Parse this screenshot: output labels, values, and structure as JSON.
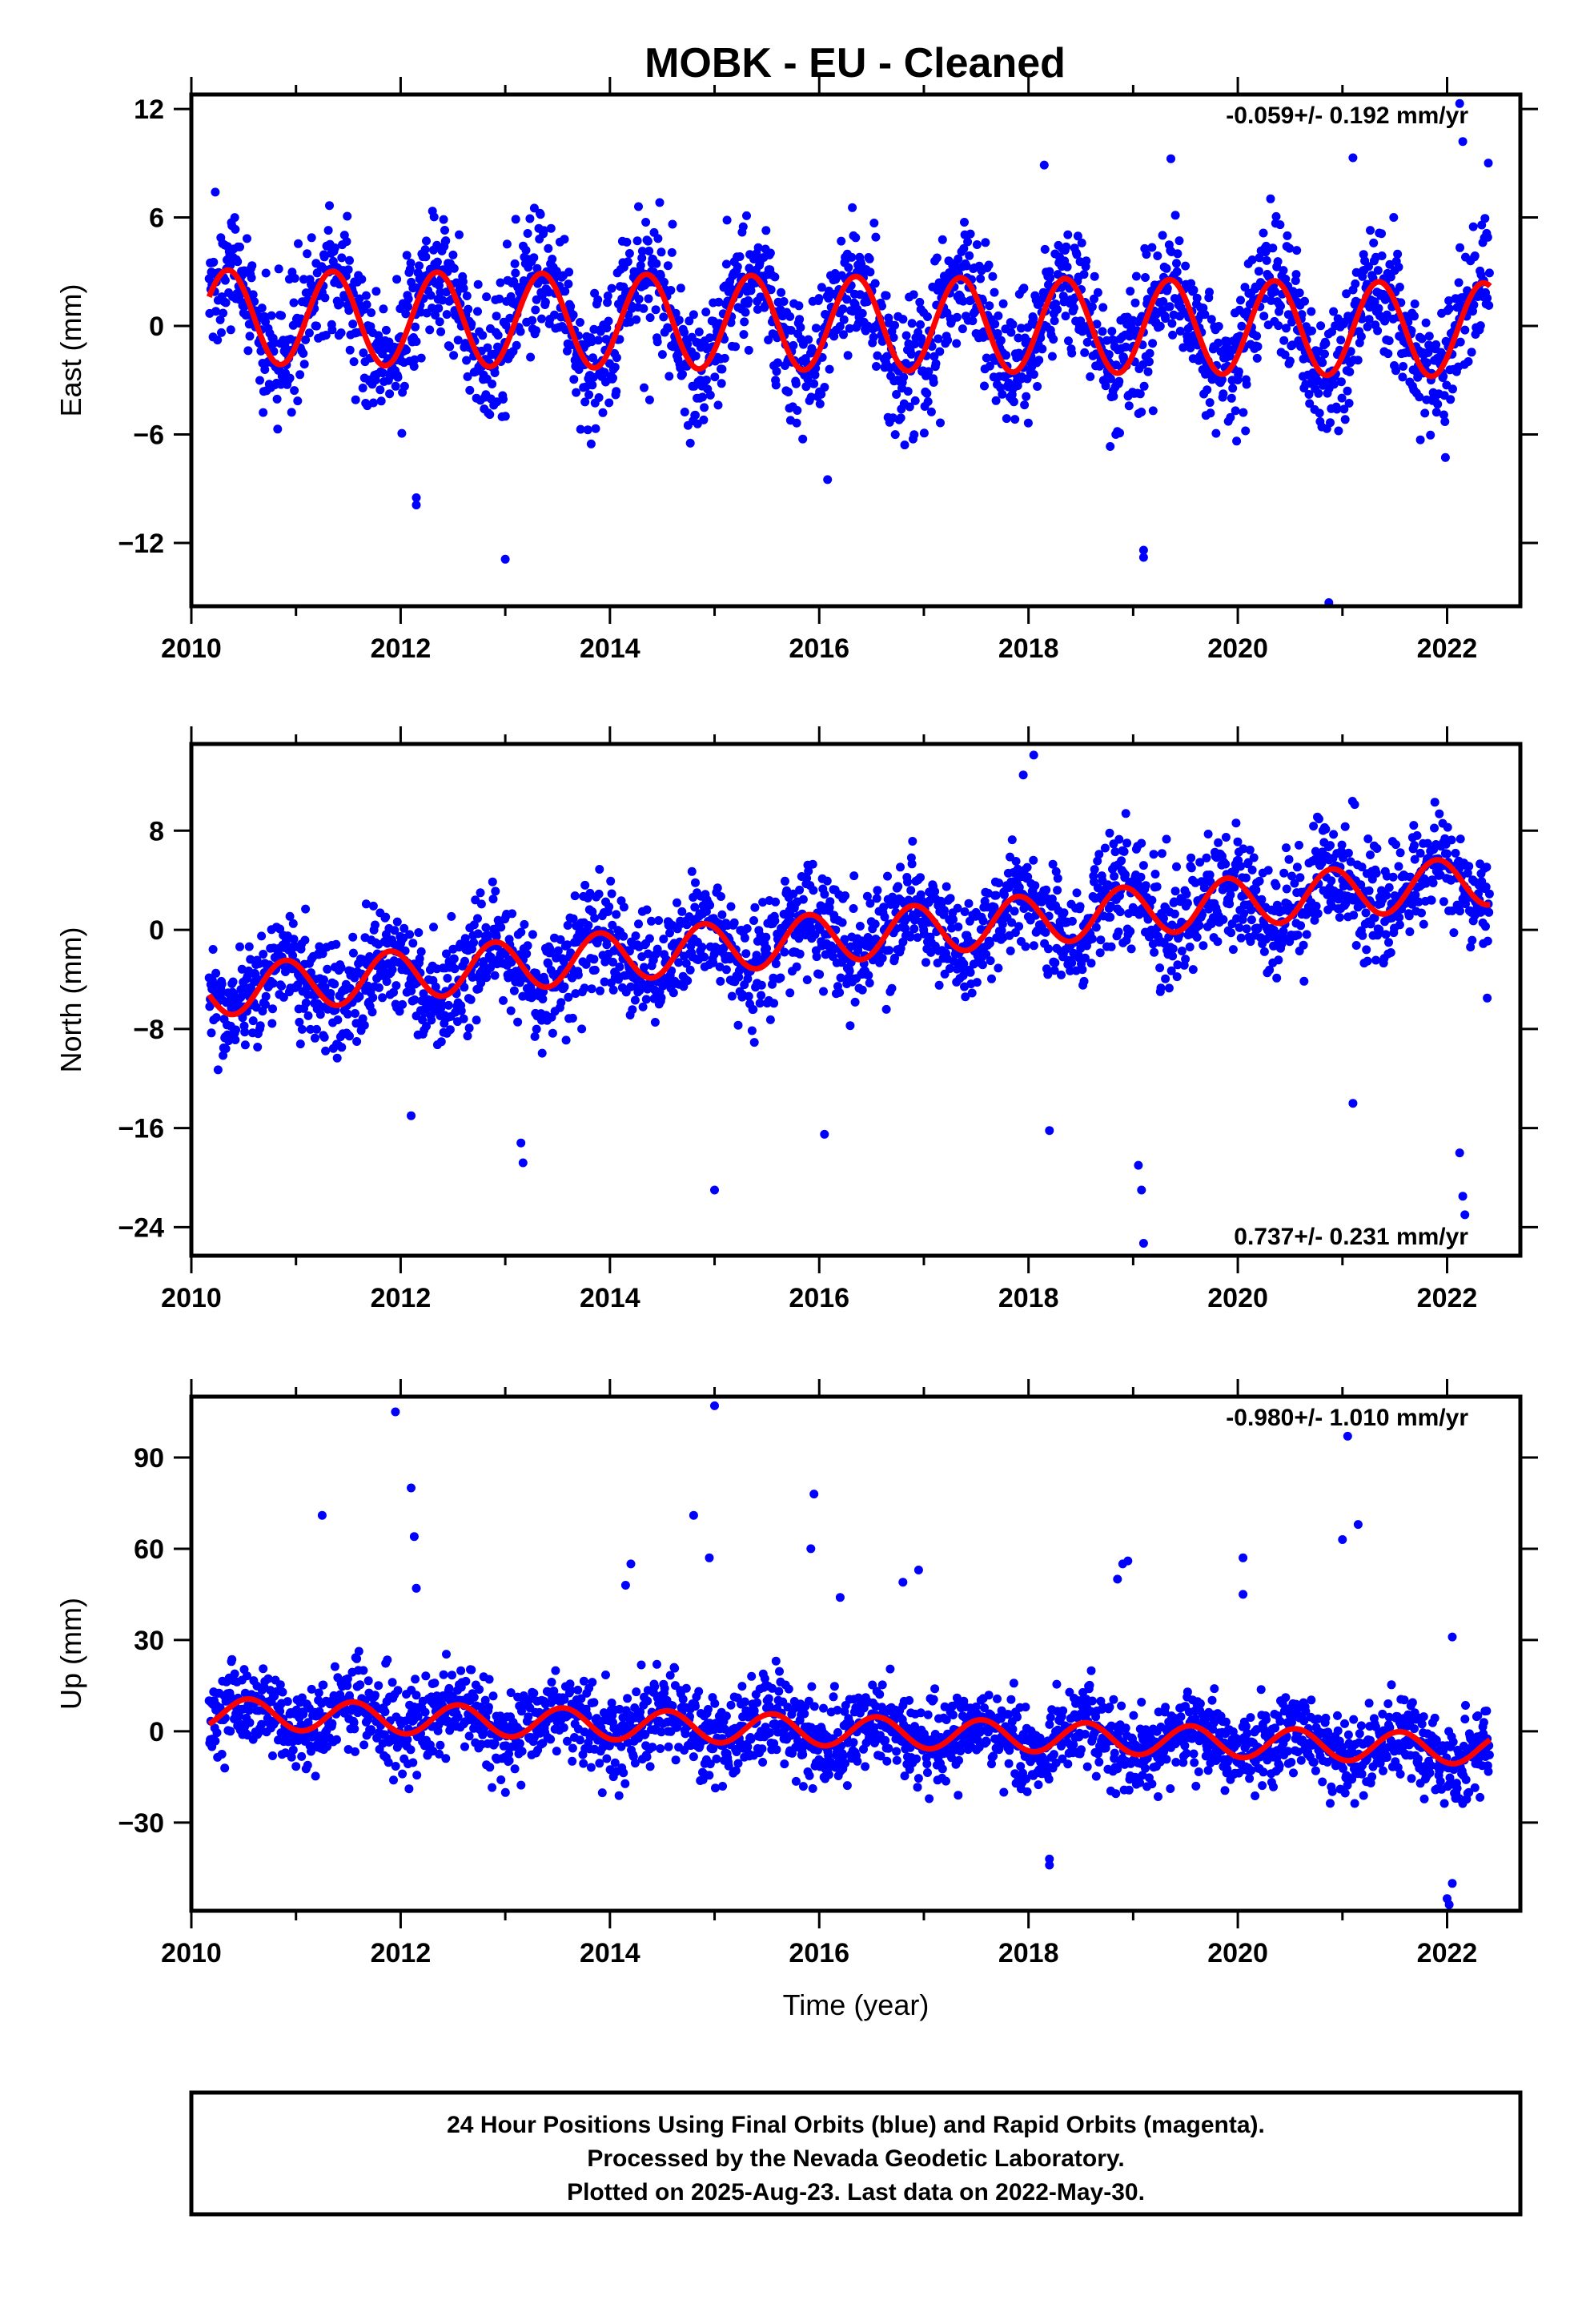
{
  "title": "MOBK  - EU - Cleaned",
  "colors": {
    "final_orbits": "#0000ff",
    "model_fit": "#ff0000",
    "frame": "#000000"
  },
  "chart_data": [
    {
      "type": "scatter",
      "name": "east",
      "ylabel": "East (mm)",
      "xlabel": "",
      "xlim": [
        2010.0,
        2022.7
      ],
      "ylim": [
        -15.5,
        12.8
      ],
      "xticks": [
        "2010",
        "2012",
        "2014",
        "2016",
        "2018",
        "2020",
        "2022"
      ],
      "yticks": [
        12,
        6,
        0,
        -6,
        -12
      ],
      "ytick_labels": [
        "12",
        "6",
        "0",
        "−6",
        "−12"
      ],
      "rate_label": "-0.059+/- 0.192 mm/yr",
      "rate_position": "top-right",
      "fit": {
        "trend_mm_per_yr": -0.059,
        "offset_mm": 0.5,
        "amplitude_mm": 2.6,
        "phase_year_peak": 0.35
      },
      "scatter": {
        "noise_sd_mm": 1.8,
        "start": 2010.17,
        "end": 2022.41
      },
      "outliers": [
        {
          "x": 2012.15,
          "y": -9.9
        },
        {
          "x": 2012.15,
          "y": -9.5
        },
        {
          "x": 2013.0,
          "y": -12.9
        },
        {
          "x": 2013.1,
          "y": 5.9
        },
        {
          "x": 2016.08,
          "y": -8.5
        },
        {
          "x": 2018.15,
          "y": 8.9
        },
        {
          "x": 2019.1,
          "y": -12.8
        },
        {
          "x": 2019.1,
          "y": -12.4
        },
        {
          "x": 2020.87,
          "y": -15.3
        },
        {
          "x": 2021.1,
          "y": 9.3
        },
        {
          "x": 2022.12,
          "y": 12.3
        },
        {
          "x": 2022.15,
          "y": 10.2
        }
      ]
    },
    {
      "type": "scatter",
      "name": "north",
      "ylabel": "North (mm)",
      "xlabel": "",
      "xlim": [
        2010.0,
        2022.7
      ],
      "ylim": [
        -26.3,
        15.0
      ],
      "xticks": [
        "2010",
        "2012",
        "2014",
        "2016",
        "2018",
        "2020",
        "2022"
      ],
      "yticks": [
        8,
        0,
        -8,
        -16,
        -24
      ],
      "ytick_labels": [
        "8",
        "0",
        "−8",
        "−16",
        "−24"
      ],
      "rate_label": "0.737+/- 0.231 mm/yr",
      "rate_position": "bottom-right",
      "fit": {
        "trend_mm_per_yr": 0.737,
        "offset_mm": -5.0,
        "amplitude_mm": 2.0,
        "phase_year_peak": 0.9
      },
      "scatter": {
        "noise_sd_mm": 2.2,
        "start": 2010.17,
        "end": 2022.41
      },
      "outliers": [
        {
          "x": 2012.1,
          "y": -15.0
        },
        {
          "x": 2013.15,
          "y": -17.2
        },
        {
          "x": 2013.17,
          "y": -18.8
        },
        {
          "x": 2015.0,
          "y": -21.0
        },
        {
          "x": 2016.05,
          "y": -16.5
        },
        {
          "x": 2017.95,
          "y": 12.5
        },
        {
          "x": 2018.05,
          "y": 14.1
        },
        {
          "x": 2018.2,
          "y": -16.2
        },
        {
          "x": 2019.05,
          "y": -19.0
        },
        {
          "x": 2019.08,
          "y": -21.0
        },
        {
          "x": 2019.1,
          "y": -25.3
        },
        {
          "x": 2021.1,
          "y": -14.0
        },
        {
          "x": 2022.12,
          "y": -18.0
        },
        {
          "x": 2022.15,
          "y": -21.5
        },
        {
          "x": 2022.17,
          "y": -23.0
        }
      ]
    },
    {
      "type": "scatter",
      "name": "up",
      "ylabel": "Up (mm)",
      "xlabel": "Time (year)",
      "xlim": [
        2010.0,
        2022.7
      ],
      "ylim": [
        -59,
        110
      ],
      "xticks": [
        "2010",
        "2012",
        "2014",
        "2016",
        "2018",
        "2020",
        "2022"
      ],
      "yticks": [
        90,
        60,
        30,
        0,
        -30
      ],
      "ytick_labels": [
        "90",
        "60",
        "30",
        "0",
        "−30"
      ],
      "rate_label": "-0.980+/- 1.010 mm/yr",
      "rate_position": "top-right",
      "fit": {
        "trend_mm_per_yr": -0.98,
        "offset_mm": 6.0,
        "amplitude_mm": 5.0,
        "phase_year_peak": 0.55
      },
      "scatter": {
        "noise_sd_mm": 7.0,
        "start": 2010.17,
        "end": 2022.41
      },
      "outliers": [
        {
          "x": 2011.25,
          "y": 71
        },
        {
          "x": 2011.95,
          "y": 105
        },
        {
          "x": 2012.1,
          "y": 80
        },
        {
          "x": 2012.13,
          "y": 64
        },
        {
          "x": 2012.15,
          "y": 47
        },
        {
          "x": 2014.15,
          "y": 48
        },
        {
          "x": 2014.2,
          "y": 55
        },
        {
          "x": 2014.8,
          "y": 71
        },
        {
          "x": 2014.95,
          "y": 57
        },
        {
          "x": 2015.0,
          "y": 107
        },
        {
          "x": 2015.95,
          "y": 78
        },
        {
          "x": 2015.92,
          "y": 60
        },
        {
          "x": 2016.2,
          "y": 44
        },
        {
          "x": 2016.8,
          "y": 49
        },
        {
          "x": 2016.95,
          "y": 53
        },
        {
          "x": 2018.2,
          "y": -44
        },
        {
          "x": 2018.2,
          "y": -42
        },
        {
          "x": 2018.85,
          "y": 50
        },
        {
          "x": 2018.9,
          "y": 55
        },
        {
          "x": 2018.95,
          "y": 56
        },
        {
          "x": 2020.05,
          "y": 57
        },
        {
          "x": 2020.05,
          "y": 45
        },
        {
          "x": 2021.05,
          "y": 97
        },
        {
          "x": 2021.15,
          "y": 68
        },
        {
          "x": 2021.0,
          "y": 63
        },
        {
          "x": 2022.05,
          "y": 31
        },
        {
          "x": 2022.05,
          "y": -50
        },
        {
          "x": 2022.0,
          "y": -55
        },
        {
          "x": 2022.02,
          "y": -57
        }
      ]
    }
  ],
  "footer": {
    "line1": "24 Hour Positions Using Final Orbits (blue) and Rapid Orbits (magenta).",
    "line2": "Processed by the Nevada Geodetic Laboratory.",
    "line3": "Plotted on 2025-Aug-23. Last data on 2022-May-30."
  }
}
